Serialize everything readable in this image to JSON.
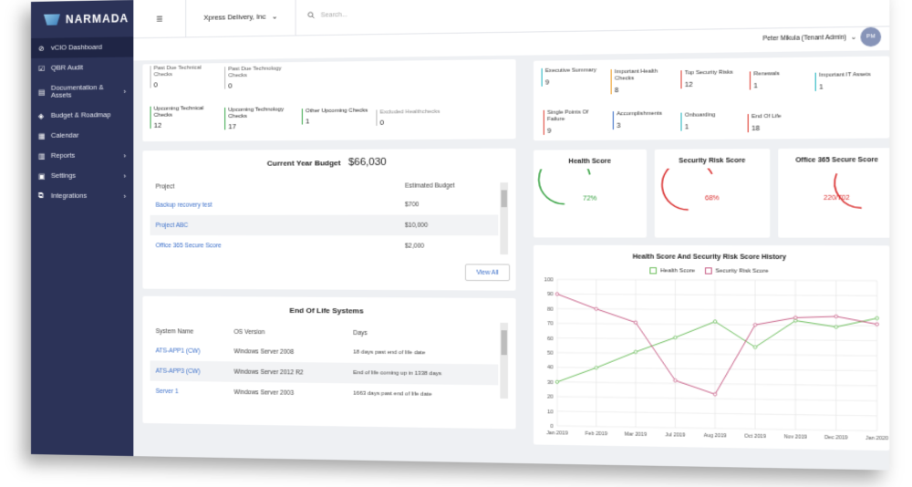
{
  "brand": {
    "name": "NARMADA"
  },
  "sidebar": {
    "items": [
      {
        "label": "vCIO Dashboard",
        "icon": "compass-icon",
        "chevron": ""
      },
      {
        "label": "QBR Audit",
        "icon": "check-square-icon",
        "chevron": ""
      },
      {
        "label": "Documentation & Assets",
        "icon": "document-icon",
        "chevron": "›"
      },
      {
        "label": "Budget & Roadmap",
        "icon": "roadmap-icon",
        "chevron": ""
      },
      {
        "label": "Calendar",
        "icon": "calendar-icon",
        "chevron": ""
      },
      {
        "label": "Reports",
        "icon": "bar-chart-icon",
        "chevron": "›"
      },
      {
        "label": "Settings",
        "icon": "settings-icon",
        "chevron": "›"
      },
      {
        "label": "Integrations",
        "icon": "integrations-icon",
        "chevron": "›"
      }
    ]
  },
  "topbar": {
    "menu_glyph": "≡",
    "company": "Xpress Delivery, Inc",
    "search_placeholder": "Search...",
    "user_name": "Peter Mikula (Tenant Admin)",
    "user_initials": "PM"
  },
  "checks": {
    "past_due_technical": {
      "label": "Past Due Technical Checks",
      "value": "0"
    },
    "past_due_technology": {
      "label": "Past Due Technology Checks",
      "value": "0"
    },
    "upcoming_technical": {
      "label": "Upcoming Technical Checks",
      "value": "12"
    },
    "upcoming_technology": {
      "label": "Upcoming Technology Checks",
      "value": "17"
    },
    "other_upcoming": {
      "label": "Other Upcoming Checks",
      "value": "1"
    },
    "excluded": {
      "label": "Excluded Healthchecks",
      "value": "0"
    }
  },
  "summary": [
    {
      "label": "Executive Summary",
      "value": "9",
      "color": "#2eb9c4"
    },
    {
      "label": "Important Health Checks",
      "value": "8",
      "color": "#f0a22e"
    },
    {
      "label": "Top Security Risks",
      "value": "12",
      "color": "#e0453a"
    },
    {
      "label": "Renewals",
      "value": "1",
      "color": "#e0453a"
    },
    {
      "label": "Important IT Assets",
      "value": "1",
      "color": "#2eb9c4"
    },
    {
      "label": "Single Points Of Failure",
      "value": "9",
      "color": "#e0453a"
    },
    {
      "label": "Accomplishments",
      "value": "3",
      "color": "#3b6fc9"
    },
    {
      "label": "Onboarding",
      "value": "1",
      "color": "#2eb9c4"
    },
    {
      "label": "End Of Life",
      "value": "18",
      "color": "#e0453a"
    }
  ],
  "budget": {
    "title": "Current Year Budget",
    "total": "$66,030",
    "col_project": "Project",
    "col_budget": "Estimated Budget",
    "rows": [
      {
        "project": "Backup recovery test",
        "budget": "$700"
      },
      {
        "project": "Project ABC",
        "budget": "$10,000"
      },
      {
        "project": "Office 365 Secure Score",
        "budget": "$2,000"
      }
    ],
    "view_all": "View All"
  },
  "eol": {
    "title": "End Of Life Systems",
    "col_name": "System Name",
    "col_os": "OS Version",
    "col_days": "Days",
    "rows": [
      {
        "name": "ATS-APP1 (CW)",
        "os": "Windows Server 2008",
        "days": "18 days past end of life date"
      },
      {
        "name": "ATS-APP3 (CW)",
        "os": "Windows Server 2012 R2",
        "days": "End of life coming up in 1338 days"
      },
      {
        "name": "Server 1",
        "os": "Windows Server 2003",
        "days": "1663 days past end of life date"
      }
    ]
  },
  "gauges": [
    {
      "title": "Health Score",
      "value": "72%",
      "fraction": 0.72,
      "color": "#2e9e3a"
    },
    {
      "title": "Security Risk Score",
      "value": "68%",
      "fraction": 0.68,
      "color": "#d92b2b"
    },
    {
      "title": "Office 365 Secure Score",
      "value": "220/702",
      "fraction": 0.31,
      "color": "#d92b2b"
    }
  ],
  "chart_data": {
    "type": "line",
    "title": "Health Score And Security Risk Score History",
    "categories": [
      "Jan 2019",
      "Feb 2019",
      "Mar 2019",
      "Jul 2019",
      "Aug 2019",
      "Oct 2019",
      "Nov 2019",
      "Dec 2019",
      "Jan 2020"
    ],
    "ylim": [
      0,
      100
    ],
    "yticks": [
      0,
      10,
      20,
      30,
      40,
      50,
      60,
      70,
      80,
      90,
      100
    ],
    "grid": true,
    "legend": "top",
    "series": [
      {
        "name": "Health Score",
        "color": "#6fbf5f",
        "values": [
          30,
          40,
          51,
          61,
          72,
          55,
          73,
          69,
          75
        ]
      },
      {
        "name": "Security Risk Score",
        "color": "#c9638a",
        "values": [
          90,
          80,
          71,
          32,
          23,
          70,
          75,
          76,
          71
        ]
      }
    ]
  }
}
